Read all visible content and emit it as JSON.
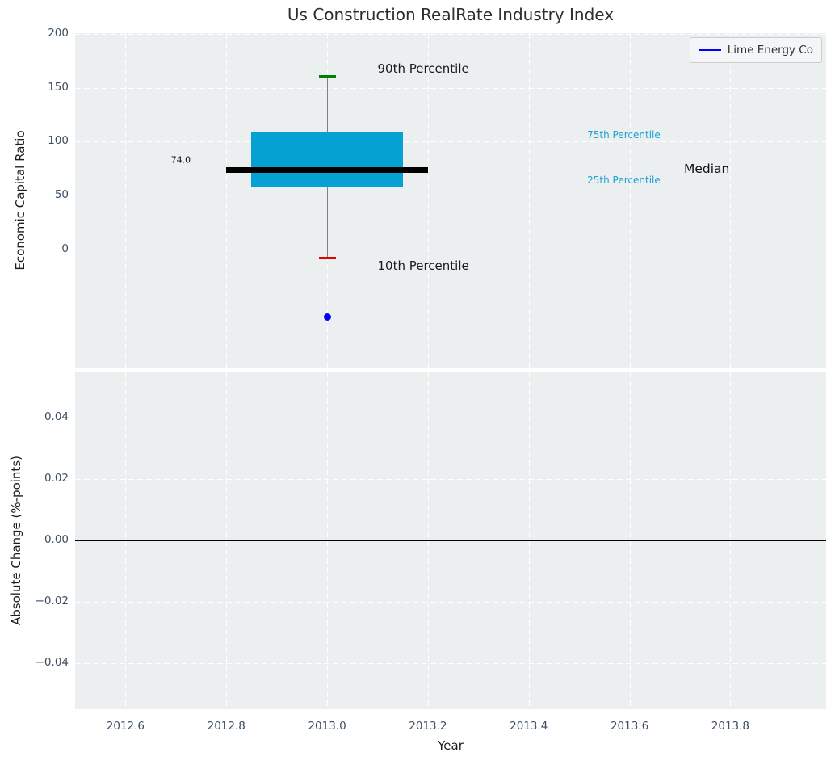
{
  "figure_title": "Us Construction RealRate Industry Index",
  "colors": {
    "axes_background": "#ebeff0",
    "grid": "#ffffff",
    "tick_label": "#3e4e63",
    "box_fill": "#05a1d2",
    "median_line": "#000000",
    "whisker": "#808080",
    "cap_high": "#008000",
    "cap_low": "#e50000",
    "point": "#0000ff",
    "legend_line": "#0000ff",
    "percentile_label": "#1ba3d4",
    "zero_line": "#000000"
  },
  "chart_data": [
    {
      "type": "boxplot",
      "title": "Us Construction RealRate Industry Index",
      "ylabel": "Economic Capital Ratio",
      "xlim": [
        2012.5,
        2013.99
      ],
      "ylim": [
        -110,
        201
      ],
      "grid": "on-white-dashed",
      "legend": {
        "label": "Lime Energy Co",
        "color": "#0000ff",
        "position": "upper right"
      },
      "yticks": {
        "values": [
          200,
          150,
          100,
          50,
          0
        ],
        "labels": [
          "200",
          "150",
          "100",
          "50",
          "0"
        ]
      },
      "xticks": {
        "values": [
          2012.6,
          2012.8,
          2013.0,
          2013.2,
          2013.4,
          2013.6,
          2013.8
        ],
        "labels": []
      },
      "box": {
        "x_center": 2013.0,
        "x_left": 2012.85,
        "x_right": 2013.15,
        "p10": -8,
        "p25": 58.5,
        "median": 74.0,
        "p75": 109,
        "p90": 161,
        "median_x_left": 2012.8,
        "median_x_right": 2013.2,
        "median_value_label": "74.0"
      },
      "point": {
        "x": 2013.0,
        "y": -63,
        "label": "Lime Energy Co"
      },
      "annotations": [
        {
          "text": "90th Percentile",
          "x": 2013.1,
          "y": 168,
          "color": "#1a1a1a",
          "size": 15,
          "align": "left"
        },
        {
          "text": "10th Percentile",
          "x": 2013.1,
          "y": -15,
          "color": "#1a1a1a",
          "size": 15,
          "align": "left"
        },
        {
          "text": "75th Percentile",
          "x": 2013.516,
          "y": 106,
          "color": "#1ba3d4",
          "size": 12,
          "align": "left"
        },
        {
          "text": "25th Percentile",
          "x": 2013.516,
          "y": 64,
          "color": "#1ba3d4",
          "size": 12,
          "align": "left"
        },
        {
          "text": "Median",
          "x": 2013.708,
          "y": 74.5,
          "color": "#111111",
          "size": 15.5,
          "align": "left"
        },
        {
          "text": "74.0",
          "x": 2012.69,
          "y": 83,
          "color": "#111111",
          "size": 11,
          "align": "left"
        }
      ]
    },
    {
      "type": "line",
      "ylabel": "Absolute Change (%-points)",
      "xlabel": "Year",
      "xlim": [
        2012.5,
        2013.99
      ],
      "ylim": [
        -0.055,
        0.055
      ],
      "grid": "on-white-dashed",
      "yticks": {
        "values": [
          0.04,
          0.02,
          0.0,
          -0.02,
          -0.04
        ],
        "labels": [
          "0.04",
          "0.02",
          "0.00",
          "−0.02",
          "−0.04"
        ]
      },
      "xticks": {
        "values": [
          2012.6,
          2012.8,
          2013.0,
          2013.2,
          2013.4,
          2013.6,
          2013.8
        ],
        "labels": [
          "2012.6",
          "2012.8",
          "2013.0",
          "2013.2",
          "2013.4",
          "2013.6",
          "2013.8"
        ]
      },
      "zero_line": {
        "y": 0.0
      },
      "series": []
    }
  ]
}
